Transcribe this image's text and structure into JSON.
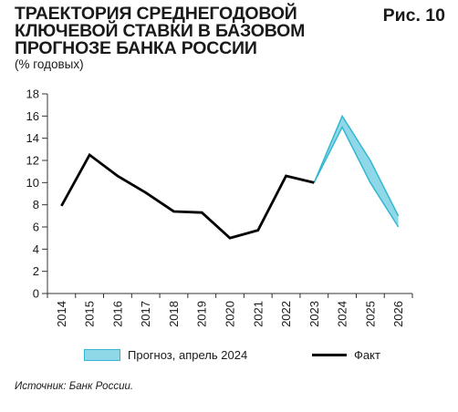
{
  "header": {
    "title": "ТРАЕКТОРИЯ СРЕДНЕГОДОВОЙ КЛЮЧЕВОЙ СТАВКИ В БАЗОВОМ ПРОГНОЗЕ БАНКА РОССИИ",
    "figure_number": "Рис. 10",
    "units": "(% годовых)"
  },
  "legend": {
    "forecast_label": "Прогноз, апрель 2024",
    "fact_label": "Факт"
  },
  "source": "Источник: Банк России.",
  "colors": {
    "fact_line": "#000000",
    "forecast_fill": "#8fd8e8",
    "forecast_edge": "#35b7d1"
  },
  "chart_data": {
    "type": "line",
    "x": [
      "2014",
      "2015",
      "2016",
      "2017",
      "2018",
      "2019",
      "2020",
      "2021",
      "2022",
      "2023",
      "2024",
      "2025",
      "2026"
    ],
    "ylim": [
      0,
      18
    ],
    "yticks": [
      0,
      2,
      4,
      6,
      8,
      10,
      12,
      14,
      16,
      18
    ],
    "grid": false,
    "legend_position": "bottom",
    "series": [
      {
        "name": "Факт",
        "x": [
          "2014",
          "2015",
          "2016",
          "2017",
          "2018",
          "2019",
          "2020",
          "2021",
          "2022",
          "2023"
        ],
        "values": [
          7.9,
          12.5,
          10.6,
          9.1,
          7.4,
          7.3,
          5.0,
          5.7,
          10.6,
          10.0
        ]
      },
      {
        "name": "Прогноз, апрель 2024",
        "type": "band",
        "x": [
          "2023",
          "2024",
          "2025",
          "2026"
        ],
        "lower": [
          10.0,
          15.0,
          10.0,
          6.0
        ],
        "upper": [
          10.0,
          16.0,
          12.0,
          7.0
        ]
      }
    ]
  }
}
